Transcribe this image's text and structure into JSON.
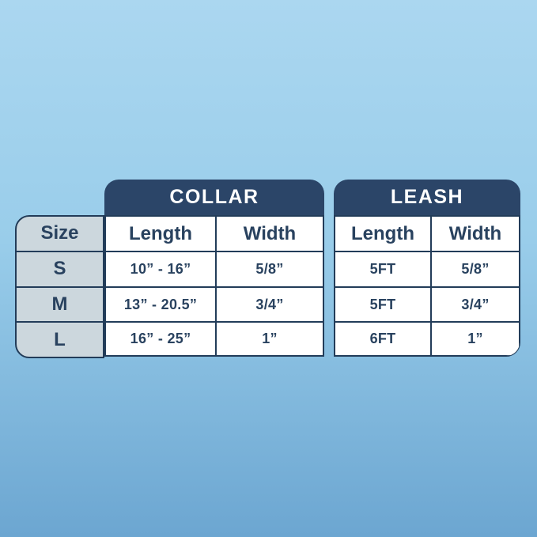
{
  "background": {
    "top": "#ABD7F0",
    "bottom": "#6CA6D1"
  },
  "colors": {
    "navy_header": "#2B4568",
    "border": "#223C59",
    "text": "#29425F",
    "size_column_bg": "#CCD7DD",
    "cell_bg": "#FFFFFF",
    "header_text": "#FFFFFF"
  },
  "size_column": {
    "header": "Size",
    "sizes": [
      "S",
      "M",
      "L"
    ]
  },
  "collar": {
    "title": "COLLAR",
    "columns": [
      "Length",
      "Width"
    ],
    "rows": [
      [
        "10” - 16”",
        "5/8”"
      ],
      [
        "13” - 20.5”",
        "3/4”"
      ],
      [
        "16” - 25”",
        "1”"
      ]
    ]
  },
  "leash": {
    "title": "LEASH",
    "columns": [
      "Length",
      "Width"
    ],
    "rows": [
      [
        "5FT",
        "5/8”"
      ],
      [
        "5FT",
        "3/4”"
      ],
      [
        "6FT",
        "1”"
      ]
    ]
  },
  "chart_data": [
    {
      "type": "table",
      "title": "COLLAR",
      "columns": [
        "Size",
        "Length",
        "Width"
      ],
      "rows": [
        [
          "S",
          "10” - 16”",
          "5/8”"
        ],
        [
          "M",
          "13” - 20.5”",
          "3/4”"
        ],
        [
          "L",
          "16” - 25”",
          "1”"
        ]
      ]
    },
    {
      "type": "table",
      "title": "LEASH",
      "columns": [
        "Size",
        "Length",
        "Width"
      ],
      "rows": [
        [
          "S",
          "5FT",
          "5/8”"
        ],
        [
          "M",
          "5FT",
          "3/4”"
        ],
        [
          "L",
          "6FT",
          "1”"
        ]
      ]
    }
  ]
}
